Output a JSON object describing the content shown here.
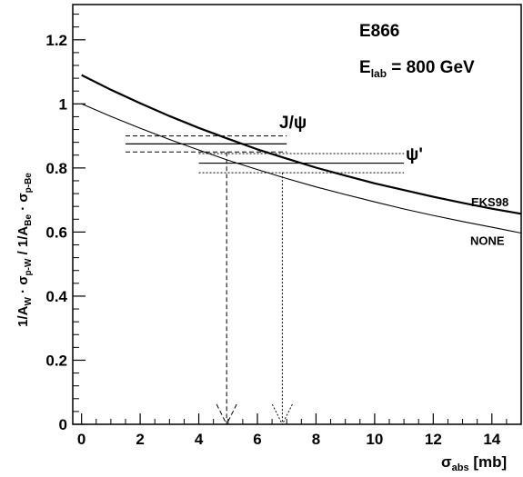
{
  "chart_data": {
    "type": "line",
    "title": "",
    "annotations": {
      "experiment": "E866",
      "energy_prefix": "E",
      "energy_sub": "lab",
      "energy_suffix": " = 800 GeV",
      "jpsi_label": "J/ψ",
      "psiprime_label": "ψ'"
    },
    "xlabel": {
      "main": "σ",
      "sub": "abs",
      "suffix": " [mb]"
    },
    "ylabel": {
      "p1": "1/A",
      "s1": "W",
      "p2": " · σ",
      "s2": "p-W",
      "p3": "  /  1/A",
      "s3": "Be",
      "p4": " · σ",
      "s4": "p-Be"
    },
    "xlim": [
      -0.3,
      15
    ],
    "ylim": [
      0,
      1.31
    ],
    "x_ticks": [
      0,
      2,
      4,
      6,
      8,
      10,
      12,
      14
    ],
    "y_ticks": [
      0,
      0.2,
      0.4,
      0.6,
      0.8,
      1,
      1.2
    ],
    "x_tick_labels": [
      "0",
      "2",
      "4",
      "6",
      "8",
      "10",
      "12",
      "14"
    ],
    "y_tick_labels": [
      "0",
      "0.2",
      "0.4",
      "0.6",
      "0.8",
      "1",
      "1.2"
    ],
    "series": [
      {
        "name": "EKS98",
        "style": "thick",
        "x": [
          0,
          1,
          2,
          3,
          4,
          5,
          6,
          7,
          8,
          9,
          10,
          11,
          12,
          13,
          14,
          15
        ],
        "y": [
          1.09,
          1.044,
          1.002,
          0.962,
          0.925,
          0.891,
          0.858,
          0.829,
          0.801,
          0.776,
          0.752,
          0.731,
          0.71,
          0.691,
          0.673,
          0.657
        ]
      },
      {
        "name": "NONE",
        "style": "thin",
        "x": [
          0,
          1,
          2,
          3,
          4,
          5,
          6,
          7,
          8,
          9,
          10,
          11,
          12,
          13,
          14,
          15
        ],
        "y": [
          1.0,
          0.961,
          0.924,
          0.889,
          0.856,
          0.824,
          0.795,
          0.767,
          0.741,
          0.717,
          0.694,
          0.672,
          0.652,
          0.633,
          0.615,
          0.597
        ]
      }
    ],
    "bands": [
      {
        "name": "J/ψ",
        "x_range": [
          1.5,
          7.0
        ],
        "central": 0.875,
        "upper": 0.9,
        "lower": 0.85,
        "arrow_x": 4.95
      },
      {
        "name": "ψ'",
        "x_range": [
          4.0,
          11.0
        ],
        "central": 0.815,
        "upper": 0.845,
        "lower": 0.785,
        "arrow_x": 6.85
      }
    ],
    "colors": {
      "line": "#000000",
      "background": "#ffffff"
    }
  }
}
